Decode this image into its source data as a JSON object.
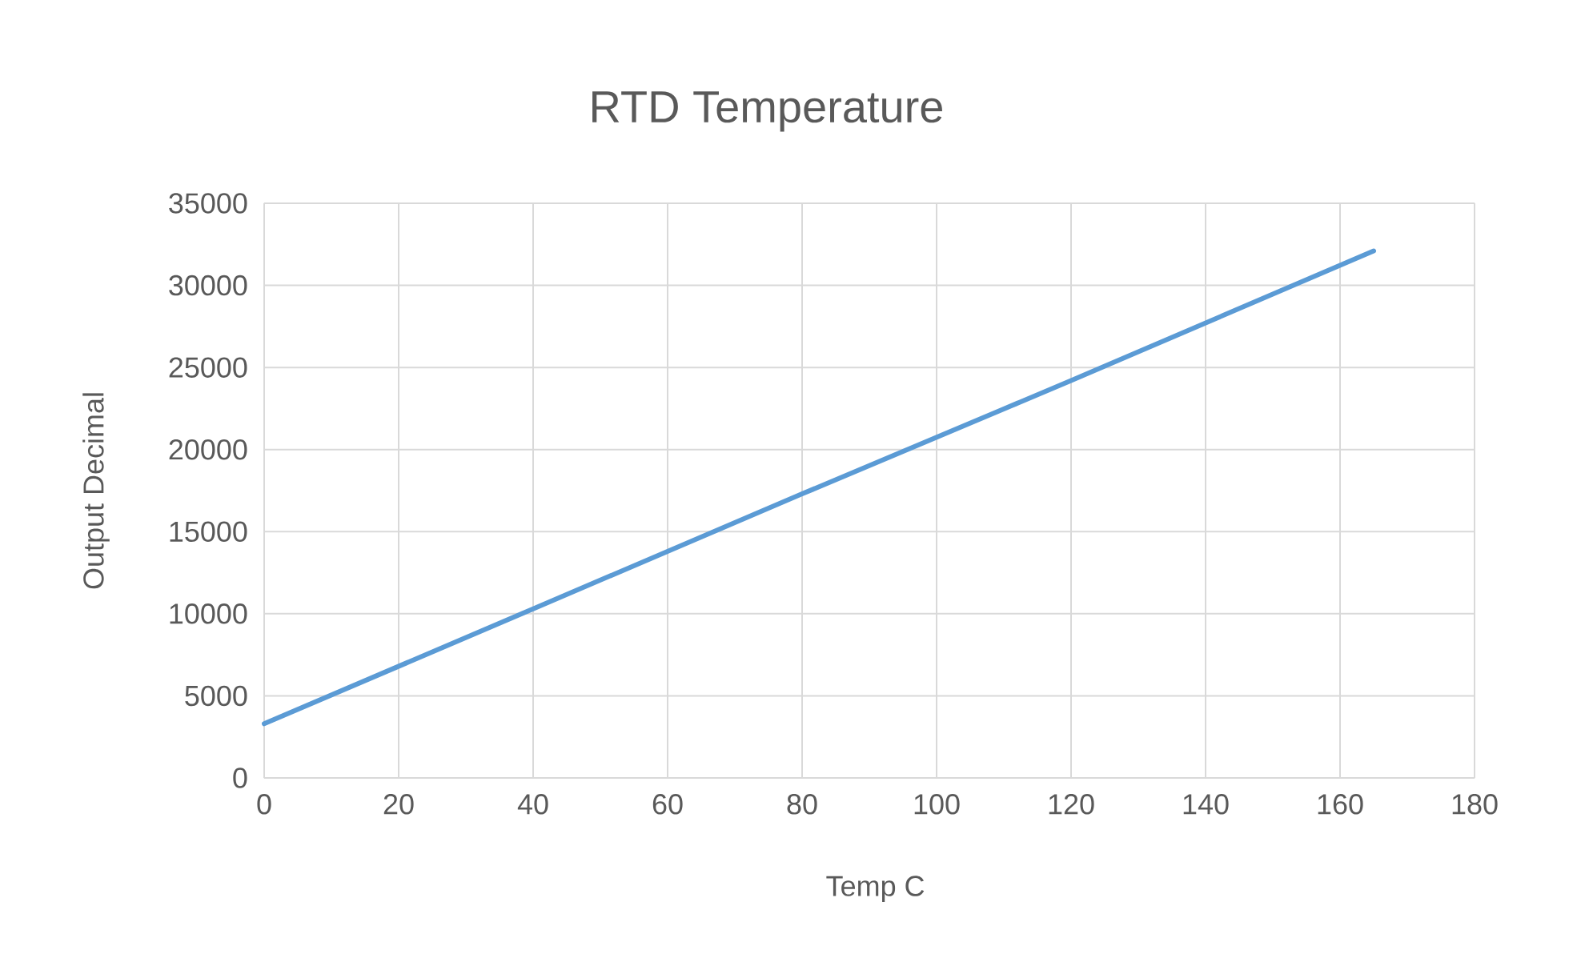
{
  "chart_data": {
    "type": "line",
    "title": "RTD Temperature",
    "xlabel": "Temp C",
    "ylabel": "Output Decimal",
    "x": [
      0,
      40,
      80,
      120,
      165
    ],
    "series": [
      {
        "color": "#5b9bd5",
        "values": [
          3300,
          10300,
          17300,
          24200,
          32100
        ]
      }
    ],
    "xlim": [
      0,
      180
    ],
    "xticks": [
      0,
      20,
      40,
      60,
      80,
      100,
      120,
      140,
      160,
      180
    ],
    "ylim": [
      0,
      35000
    ],
    "yticks": [
      0,
      5000,
      10000,
      15000,
      20000,
      25000,
      30000,
      35000
    ],
    "grid": true,
    "marker": "none",
    "line_style": "solid"
  }
}
